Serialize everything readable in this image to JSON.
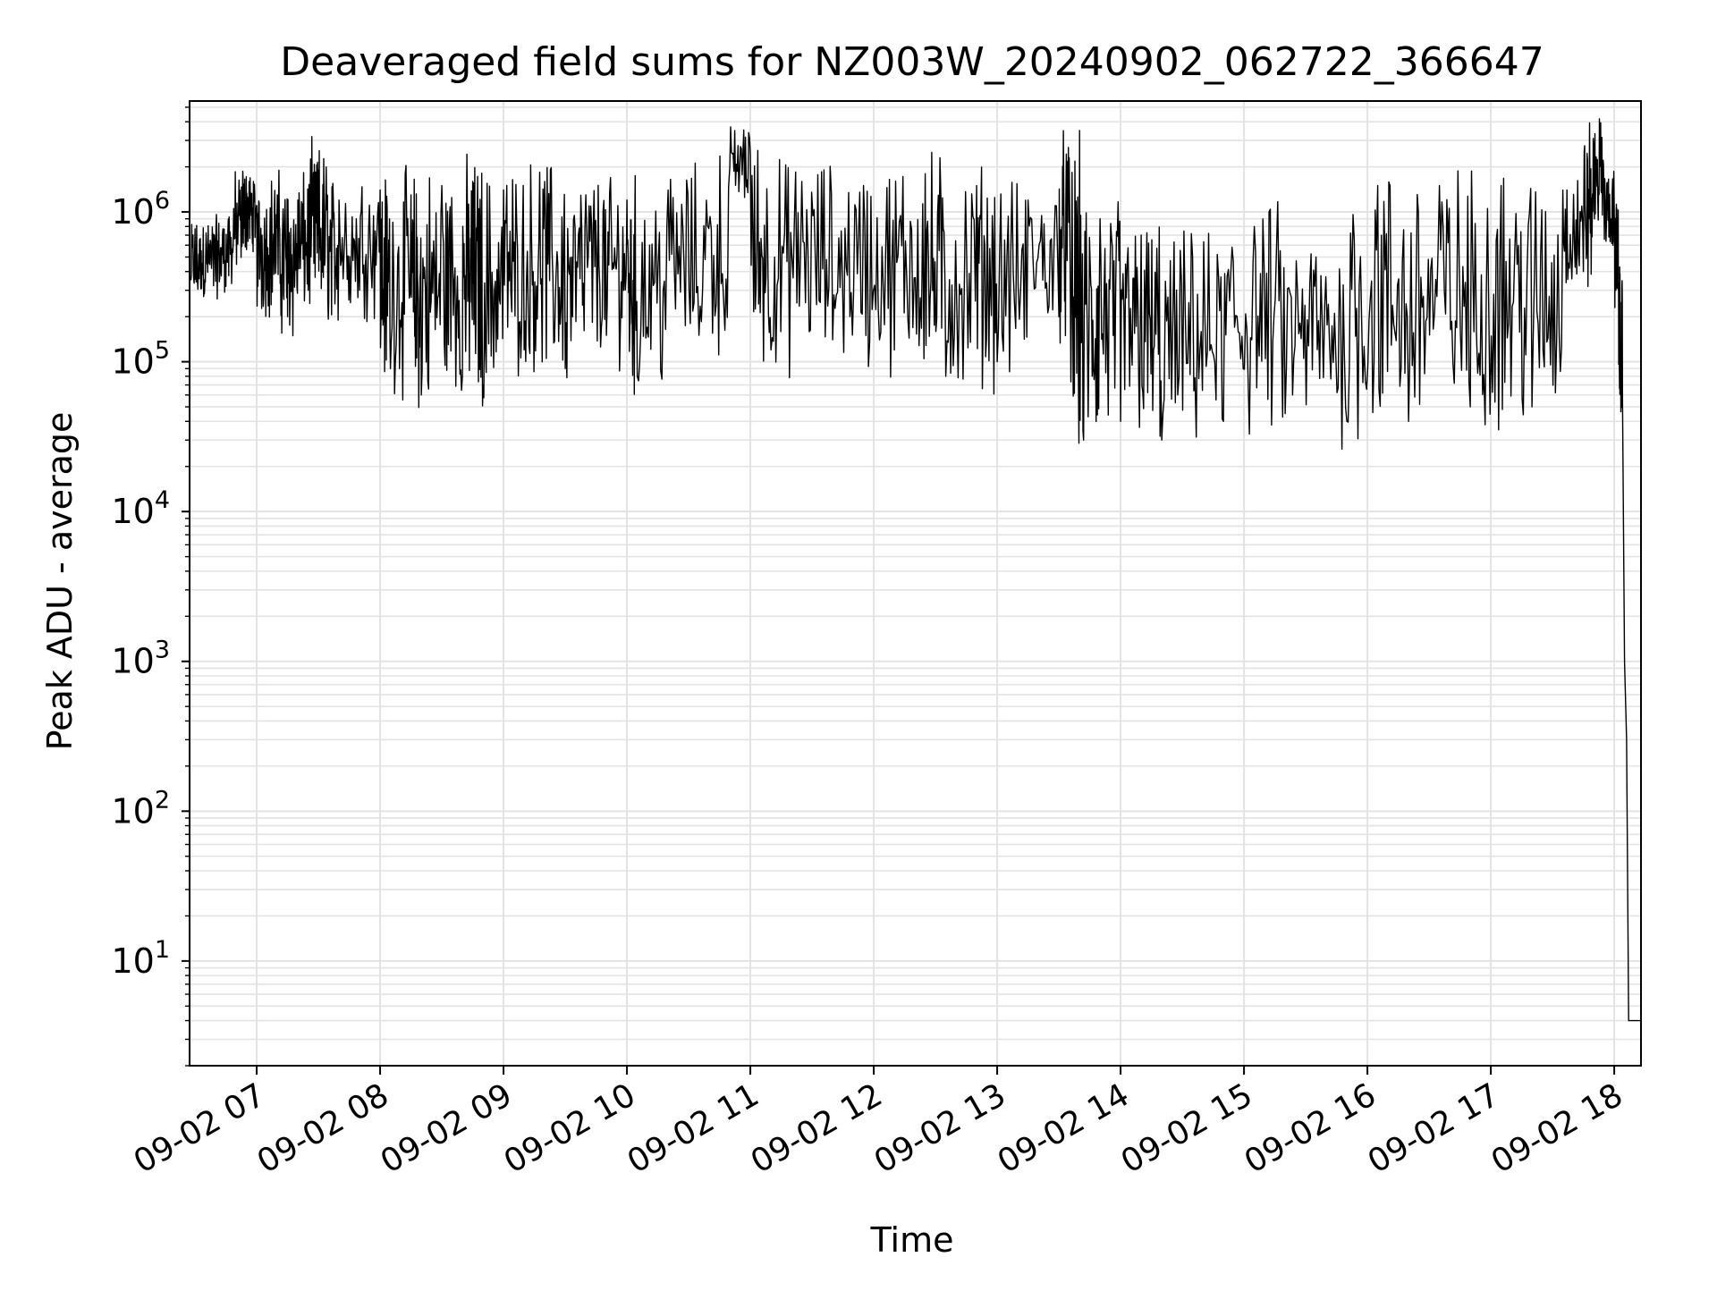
{
  "chart_data": {
    "type": "line",
    "title": "Deaveraged field sums for NZ003W_20240902_062722_366647",
    "xlabel": "Time",
    "ylabel": "Peak ADU - average",
    "yscale": "log",
    "grid": "both (major and minor)",
    "xlim": [
      "2024-09-02T06:27:22",
      "2024-09-02T18:13:00"
    ],
    "ylim": [
      2,
      5500000
    ],
    "x_tick_labels": [
      "09-02 07",
      "09-02 08",
      "09-02 09",
      "09-02 10",
      "09-02 11",
      "09-02 12",
      "09-02 13",
      "09-02 14",
      "09-02 15",
      "09-02 16",
      "09-02 17",
      "09-02 18"
    ],
    "y_tick_labels": [
      {
        "base": "10",
        "exp": "1"
      },
      {
        "base": "10",
        "exp": "2"
      },
      {
        "base": "10",
        "exp": "3"
      },
      {
        "base": "10",
        "exp": "4"
      },
      {
        "base": "10",
        "exp": "5"
      },
      {
        "base": "10",
        "exp": "6"
      }
    ],
    "line_color": "#000000",
    "series": [
      {
        "note": "approximate envelope of a dense noisy trace; values are sampled highs/lows",
        "points": [
          [
            "2024-09-02T06:28",
            350000
          ],
          [
            "2024-09-02T06:33",
            550000
          ],
          [
            "2024-09-02T06:38",
            420000
          ],
          [
            "2024-09-02T06:43",
            580000
          ],
          [
            "2024-09-02T06:48",
            480000
          ],
          [
            "2024-09-02T06:53",
            1200000
          ],
          [
            "2024-09-02T06:56",
            900000
          ],
          [
            "2024-09-02T07:00",
            1100000
          ],
          [
            "2024-09-02T07:05",
            300000
          ],
          [
            "2024-09-02T07:10",
            1300000
          ],
          [
            "2024-09-02T07:15",
            200000
          ],
          [
            "2024-09-02T07:20",
            1200000
          ],
          [
            "2024-09-02T07:25",
            300000
          ],
          [
            "2024-09-02T07:30",
            1900000
          ],
          [
            "2024-09-02T07:35",
            250000
          ],
          [
            "2024-09-02T07:40",
            1200000
          ],
          [
            "2024-09-02T07:50",
            300000
          ],
          [
            "2024-09-02T08:00",
            1400000
          ],
          [
            "2024-09-02T08:05",
            90000
          ],
          [
            "2024-09-02T08:15",
            1300000
          ],
          [
            "2024-09-02T08:20",
            60000
          ],
          [
            "2024-09-02T08:30",
            1500000
          ],
          [
            "2024-09-02T08:40",
            80000
          ],
          [
            "2024-09-02T08:45",
            1600000
          ],
          [
            "2024-09-02T08:50",
            70000
          ],
          [
            "2024-09-02T09:00",
            1400000
          ],
          [
            "2024-09-02T09:10",
            120000
          ],
          [
            "2024-09-02T09:20",
            1600000
          ],
          [
            "2024-09-02T09:30",
            90000
          ],
          [
            "2024-09-02T09:40",
            1300000
          ],
          [
            "2024-09-02T09:50",
            150000
          ],
          [
            "2024-09-02T10:00",
            1200000
          ],
          [
            "2024-09-02T10:05",
            80000
          ],
          [
            "2024-09-02T10:20",
            1400000
          ],
          [
            "2024-09-02T10:35",
            150000
          ],
          [
            "2024-09-02T10:50",
            2000000
          ],
          [
            "2024-09-02T11:00",
            2400000
          ],
          [
            "2024-09-02T11:10",
            120000
          ],
          [
            "2024-09-02T11:25",
            1600000
          ],
          [
            "2024-09-02T11:40",
            140000
          ],
          [
            "2024-09-02T11:55",
            1500000
          ],
          [
            "2024-09-02T12:10",
            120000
          ],
          [
            "2024-09-02T12:25",
            1800000
          ],
          [
            "2024-09-02T12:35",
            80000
          ],
          [
            "2024-09-02T12:50",
            1500000
          ],
          [
            "2024-09-02T13:00",
            100000
          ],
          [
            "2024-09-02T13:15",
            1200000
          ],
          [
            "2024-09-02T13:30",
            200000
          ],
          [
            "2024-09-02T13:35",
            2300000
          ],
          [
            "2024-09-02T13:42",
            30000
          ],
          [
            "2024-09-02T13:50",
            900000
          ],
          [
            "2024-09-02T14:00",
            40000
          ],
          [
            "2024-09-02T14:10",
            700000
          ],
          [
            "2024-09-02T14:20",
            30000
          ],
          [
            "2024-09-02T14:35",
            500000
          ],
          [
            "2024-09-02T14:50",
            40000
          ],
          [
            "2024-09-02T15:05",
            800000
          ],
          [
            "2024-09-02T15:20",
            45000
          ],
          [
            "2024-09-02T15:35",
            500000
          ],
          [
            "2024-09-02T15:50",
            40000
          ],
          [
            "2024-09-02T16:05",
            1500000
          ],
          [
            "2024-09-02T16:20",
            40000
          ],
          [
            "2024-09-02T16:35",
            1500000
          ],
          [
            "2024-09-02T16:50",
            50000
          ],
          [
            "2024-09-02T17:05",
            1500000
          ],
          [
            "2024-09-02T17:20",
            50000
          ],
          [
            "2024-09-02T17:35",
            1400000
          ],
          [
            "2024-09-02T17:45",
            400000
          ],
          [
            "2024-09-02T17:50",
            2800000
          ],
          [
            "2024-09-02T17:55",
            1100000
          ],
          [
            "2024-09-02T18:00",
            1000000
          ],
          [
            "2024-09-02T18:02",
            300000
          ],
          [
            "2024-09-02T18:04",
            60000
          ],
          [
            "2024-09-02T18:05",
            1000
          ],
          [
            "2024-09-02T18:06",
            300
          ],
          [
            "2024-09-02T18:07",
            4
          ],
          [
            "2024-09-02T18:13",
            4
          ]
        ]
      }
    ]
  }
}
